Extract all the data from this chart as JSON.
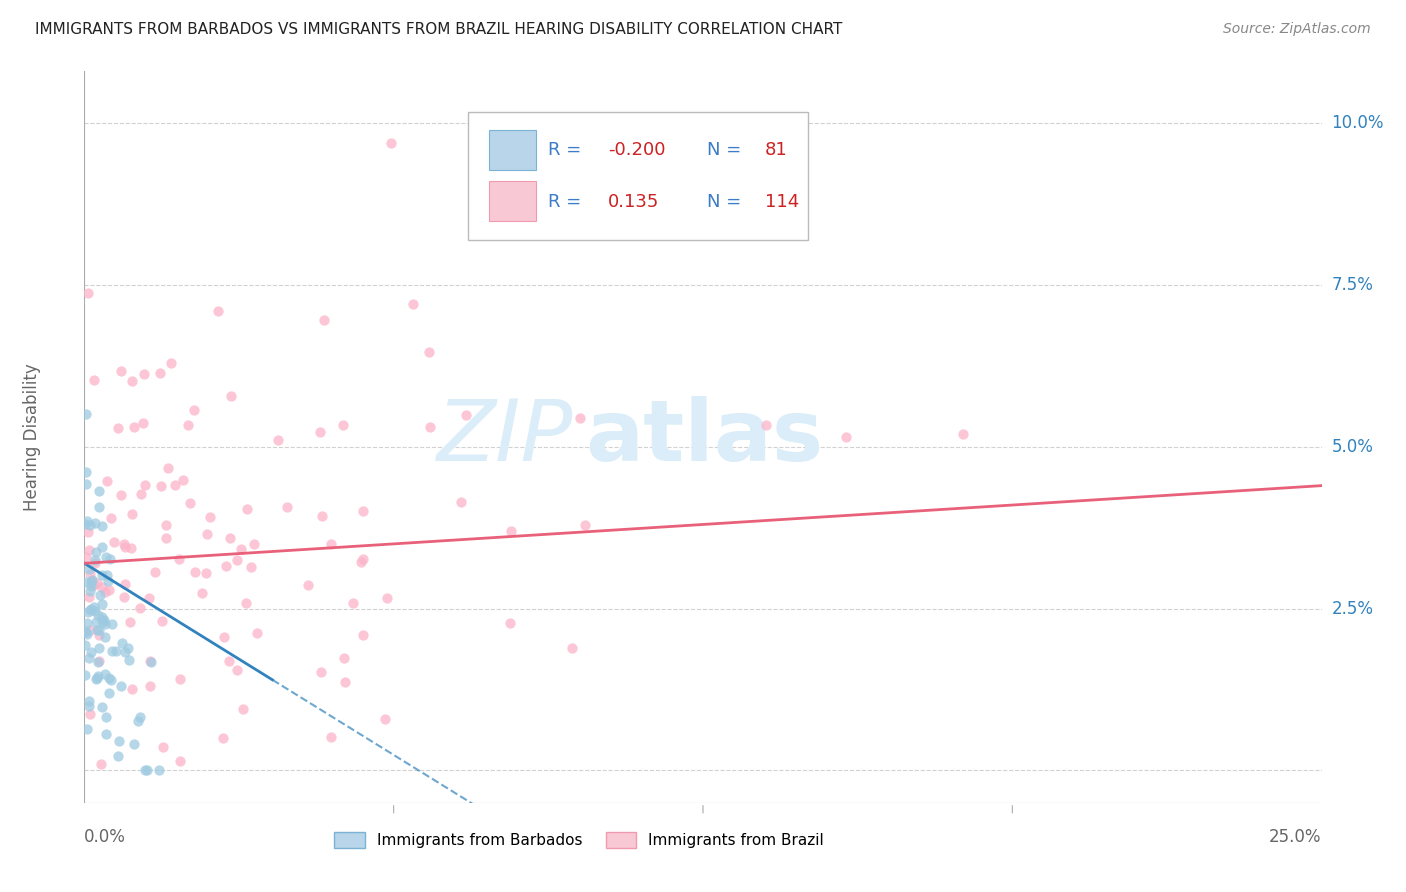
{
  "title": "IMMIGRANTS FROM BARBADOS VS IMMIGRANTS FROM BRAZIL HEARING DISABILITY CORRELATION CHART",
  "source": "Source: ZipAtlas.com",
  "ylabel": "Hearing Disability",
  "xlim": [
    0.0,
    0.25
  ],
  "ylim": [
    -0.005,
    0.108
  ],
  "barbados_color": "#9ecae1",
  "barbados_line_color": "#3182bd",
  "brazil_color": "#fbb4c9",
  "brazil_line_color": "#e8607a",
  "R_barbados": -0.2,
  "N_barbados": 81,
  "R_brazil": 0.135,
  "N_brazil": 114,
  "watermark_color": "#daedf8",
  "background_color": "#ffffff",
  "grid_color": "#cccccc",
  "ytick_values": [
    0.0,
    0.025,
    0.05,
    0.075,
    0.1
  ],
  "ytick_labels": [
    "",
    "2.5%",
    "5.0%",
    "7.5%",
    "10.0%"
  ],
  "title_fontsize": 11,
  "source_fontsize": 10,
  "tick_label_fontsize": 12,
  "ylabel_fontsize": 12,
  "legend_fontsize": 13,
  "scatter_size": 55,
  "scatter_alpha": 0.75
}
